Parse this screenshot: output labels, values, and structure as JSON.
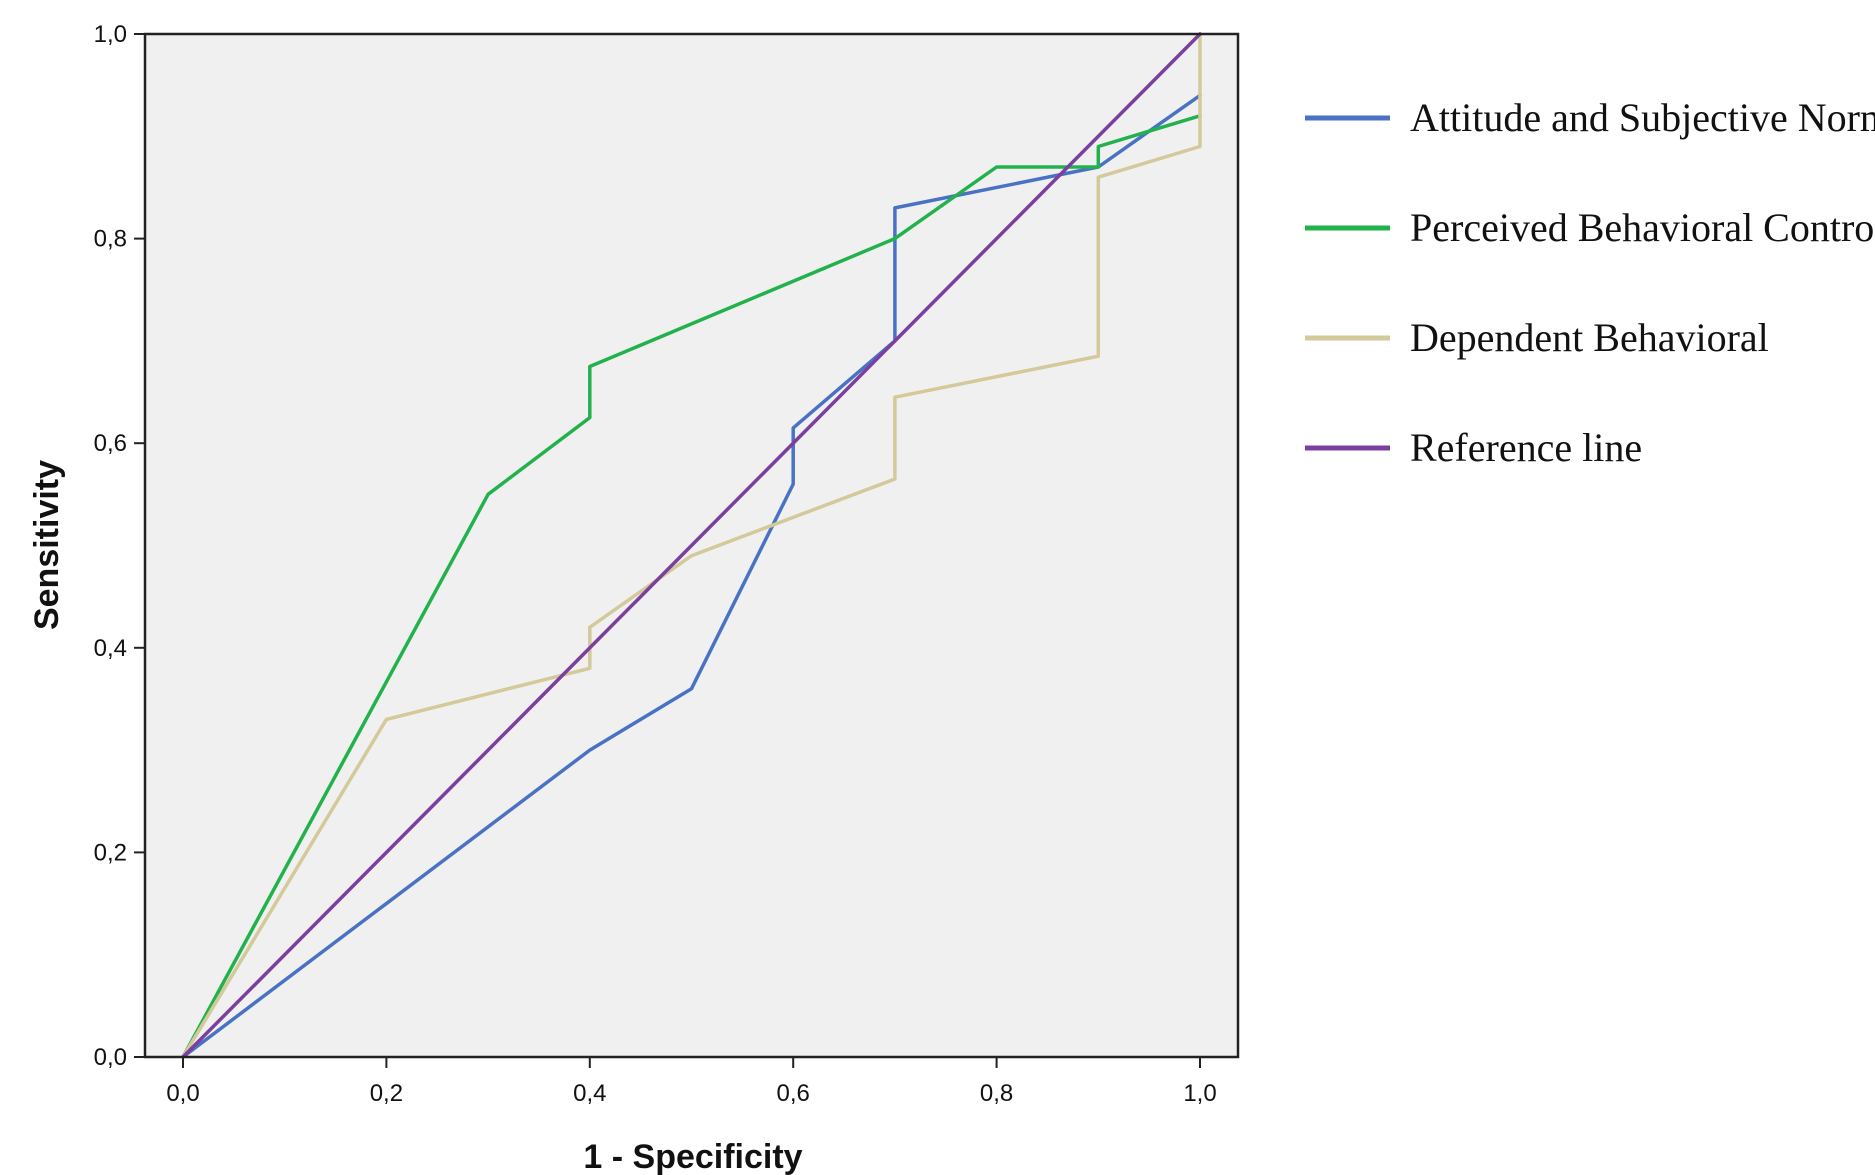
{
  "chart_data": {
    "type": "line",
    "title": "",
    "xlabel": "1 - Specificity",
    "ylabel": "Sensitivity",
    "xlim": [
      0,
      1
    ],
    "ylim": [
      0,
      1
    ],
    "x_ticks": [
      "0,0",
      "0,2",
      "0,4",
      "0,6",
      "0,8",
      "1,0"
    ],
    "y_ticks": [
      "0,0",
      "0,2",
      "0,4",
      "0,6",
      "0,8",
      "1,0"
    ],
    "tick_values": [
      0,
      0.2,
      0.4,
      0.6,
      0.8,
      1.0
    ],
    "grid": false,
    "background": "#f0f0f0",
    "legend_position": "right",
    "series": [
      {
        "name": "Attitude and Subjective Norm",
        "color": "#4a72c4",
        "points": [
          [
            0,
            0
          ],
          [
            0.4,
            0.3
          ],
          [
            0.5,
            0.36
          ],
          [
            0.6,
            0.56
          ],
          [
            0.6,
            0.615
          ],
          [
            0.7,
            0.7
          ],
          [
            0.7,
            0.83
          ],
          [
            0.9,
            0.87
          ],
          [
            1.0,
            0.94
          ]
        ]
      },
      {
        "name": "Perceived Behavioral Control",
        "color": "#22b24c",
        "points": [
          [
            0,
            0
          ],
          [
            0.3,
            0.55
          ],
          [
            0.4,
            0.625
          ],
          [
            0.4,
            0.675
          ],
          [
            0.7,
            0.8
          ],
          [
            0.8,
            0.87
          ],
          [
            0.9,
            0.87
          ],
          [
            0.9,
            0.89
          ],
          [
            1.0,
            0.92
          ]
        ]
      },
      {
        "name": "Dependent Behavioral",
        "color": "#d4c99a",
        "points": [
          [
            0,
            0
          ],
          [
            0.2,
            0.33
          ],
          [
            0.4,
            0.38
          ],
          [
            0.4,
            0.42
          ],
          [
            0.5,
            0.49
          ],
          [
            0.7,
            0.565
          ],
          [
            0.7,
            0.645
          ],
          [
            0.9,
            0.685
          ],
          [
            0.9,
            0.86
          ],
          [
            1.0,
            0.89
          ],
          [
            1.0,
            1.0
          ]
        ]
      },
      {
        "name": "Reference line",
        "color": "#7b3f9e",
        "points": [
          [
            0,
            0
          ],
          [
            1,
            1
          ]
        ]
      }
    ]
  }
}
